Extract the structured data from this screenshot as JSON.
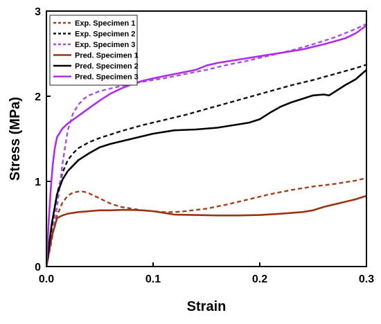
{
  "chart_data": {
    "type": "line",
    "xlabel": "Strain",
    "ylabel": "Stress (MPa)",
    "xlim": [
      0.0,
      0.3
    ],
    "ylim": [
      0,
      3
    ],
    "xticks": [
      0.0,
      0.1,
      0.2,
      0.3
    ],
    "xtick_labels": [
      "0.0",
      "0.1",
      "0.2",
      "0.3"
    ],
    "yticks": [
      0,
      1,
      2,
      3
    ],
    "ytick_labels": [
      "0",
      "1",
      "2",
      "3"
    ],
    "grid": false,
    "legend_position": "top-left",
    "series": [
      {
        "name": "Exp. Specimen 1",
        "color": "#A0411C",
        "style": "dashed",
        "x": [
          0.0,
          0.005,
          0.01,
          0.015,
          0.02,
          0.025,
          0.03,
          0.035,
          0.04,
          0.05,
          0.06,
          0.07,
          0.08,
          0.09,
          0.1,
          0.11,
          0.12,
          0.13,
          0.15,
          0.17,
          0.19,
          0.21,
          0.23,
          0.25,
          0.27,
          0.29,
          0.3
        ],
        "y": [
          0.0,
          0.35,
          0.6,
          0.75,
          0.83,
          0.87,
          0.88,
          0.88,
          0.86,
          0.8,
          0.74,
          0.7,
          0.68,
          0.66,
          0.65,
          0.64,
          0.64,
          0.65,
          0.68,
          0.73,
          0.79,
          0.85,
          0.9,
          0.94,
          0.97,
          1.01,
          1.04
        ]
      },
      {
        "name": "Exp. Specimen 2",
        "color": "#111111",
        "style": "dashed",
        "x": [
          0.0,
          0.005,
          0.01,
          0.015,
          0.02,
          0.025,
          0.03,
          0.04,
          0.05,
          0.07,
          0.09,
          0.11,
          0.13,
          0.15,
          0.17,
          0.19,
          0.21,
          0.23,
          0.25,
          0.27,
          0.29,
          0.3
        ],
        "y": [
          0.0,
          0.45,
          0.85,
          1.1,
          1.25,
          1.33,
          1.39,
          1.46,
          1.51,
          1.59,
          1.66,
          1.72,
          1.78,
          1.85,
          1.92,
          1.99,
          2.06,
          2.13,
          2.19,
          2.26,
          2.33,
          2.37
        ]
      },
      {
        "name": "Exp. Specimen 3",
        "color": "#A64DEB",
        "style": "dashed",
        "x": [
          0.0,
          0.005,
          0.01,
          0.015,
          0.02,
          0.025,
          0.03,
          0.035,
          0.04,
          0.05,
          0.07,
          0.09,
          0.11,
          0.13,
          0.15,
          0.17,
          0.19,
          0.21,
          0.23,
          0.25,
          0.27,
          0.29,
          0.3
        ],
        "y": [
          0.0,
          0.3,
          0.7,
          1.2,
          1.6,
          1.8,
          1.9,
          1.97,
          2.01,
          2.06,
          2.12,
          2.17,
          2.21,
          2.26,
          2.31,
          2.37,
          2.42,
          2.48,
          2.54,
          2.61,
          2.69,
          2.79,
          2.85
        ]
      },
      {
        "name": "Pred. Specimen 1",
        "color": "#9C3412",
        "style": "solid",
        "x": [
          0.0,
          0.005,
          0.01,
          0.015,
          0.02,
          0.03,
          0.04,
          0.05,
          0.06,
          0.07,
          0.08,
          0.09,
          0.1,
          0.11,
          0.12,
          0.14,
          0.16,
          0.18,
          0.2,
          0.22,
          0.24,
          0.25,
          0.26,
          0.27,
          0.28,
          0.29,
          0.3
        ],
        "y": [
          0.0,
          0.35,
          0.57,
          0.6,
          0.62,
          0.64,
          0.65,
          0.66,
          0.66,
          0.665,
          0.665,
          0.66,
          0.65,
          0.63,
          0.61,
          0.605,
          0.6,
          0.6,
          0.605,
          0.62,
          0.64,
          0.66,
          0.7,
          0.73,
          0.76,
          0.79,
          0.83
        ]
      },
      {
        "name": "Pred. Specimen 2",
        "color": "#000000",
        "style": "solid",
        "x": [
          0.0,
          0.005,
          0.01,
          0.015,
          0.02,
          0.03,
          0.04,
          0.05,
          0.06,
          0.08,
          0.1,
          0.12,
          0.14,
          0.16,
          0.18,
          0.19,
          0.2,
          0.21,
          0.22,
          0.23,
          0.24,
          0.25,
          0.26,
          0.265,
          0.27,
          0.28,
          0.29,
          0.3
        ],
        "y": [
          0.0,
          0.5,
          0.85,
          1.02,
          1.12,
          1.25,
          1.33,
          1.4,
          1.44,
          1.5,
          1.56,
          1.6,
          1.61,
          1.63,
          1.67,
          1.69,
          1.73,
          1.81,
          1.88,
          1.93,
          1.97,
          2.01,
          2.02,
          2.01,
          2.05,
          2.13,
          2.2,
          2.31
        ]
      },
      {
        "name": "Pred. Specimen 3",
        "color": "#B12BEB",
        "style": "solid",
        "x": [
          0.0,
          0.002,
          0.004,
          0.006,
          0.008,
          0.01,
          0.015,
          0.02,
          0.03,
          0.04,
          0.05,
          0.06,
          0.07,
          0.08,
          0.09,
          0.1,
          0.12,
          0.14,
          0.15,
          0.16,
          0.18,
          0.2,
          0.22,
          0.24,
          0.26,
          0.28,
          0.29,
          0.3
        ],
        "y": [
          0.0,
          0.5,
          0.9,
          1.2,
          1.4,
          1.52,
          1.62,
          1.68,
          1.77,
          1.86,
          1.95,
          2.03,
          2.09,
          2.14,
          2.18,
          2.21,
          2.26,
          2.31,
          2.36,
          2.39,
          2.43,
          2.47,
          2.51,
          2.55,
          2.61,
          2.68,
          2.74,
          2.83
        ]
      }
    ]
  }
}
